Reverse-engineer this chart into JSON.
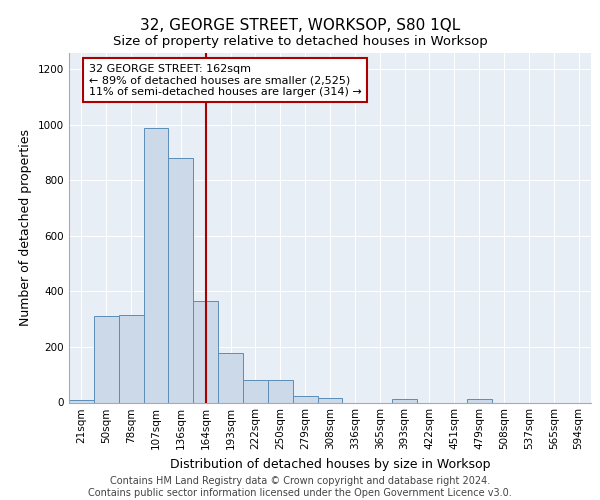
{
  "title": "32, GEORGE STREET, WORKSOP, S80 1QL",
  "subtitle": "Size of property relative to detached houses in Worksop",
  "xlabel": "Distribution of detached houses by size in Worksop",
  "ylabel": "Number of detached properties",
  "categories": [
    "21sqm",
    "50sqm",
    "78sqm",
    "107sqm",
    "136sqm",
    "164sqm",
    "193sqm",
    "222sqm",
    "250sqm",
    "279sqm",
    "308sqm",
    "336sqm",
    "365sqm",
    "393sqm",
    "422sqm",
    "451sqm",
    "479sqm",
    "508sqm",
    "537sqm",
    "565sqm",
    "594sqm"
  ],
  "values": [
    10,
    310,
    315,
    990,
    880,
    365,
    180,
    80,
    80,
    25,
    15,
    0,
    0,
    12,
    0,
    0,
    12,
    0,
    0,
    0,
    0
  ],
  "bar_color": "#ccd9e8",
  "bar_edge_color": "#5b8db8",
  "vline_color": "#aa0000",
  "vline_x": 5.0,
  "annotation_text": "32 GEORGE STREET: 162sqm\n← 89% of detached houses are smaller (2,525)\n11% of semi-detached houses are larger (314) →",
  "annotation_box_color": "white",
  "annotation_box_edge_color": "#aa0000",
  "ylim": [
    0,
    1260
  ],
  "yticks": [
    0,
    200,
    400,
    600,
    800,
    1000,
    1200
  ],
  "background_color": "#e8eef5",
  "footer_text": "Contains HM Land Registry data © Crown copyright and database right 2024.\nContains public sector information licensed under the Open Government Licence v3.0.",
  "title_fontsize": 11,
  "subtitle_fontsize": 9.5,
  "xlabel_fontsize": 9,
  "ylabel_fontsize": 9,
  "tick_fontsize": 7.5,
  "annotation_fontsize": 8,
  "footer_fontsize": 7
}
